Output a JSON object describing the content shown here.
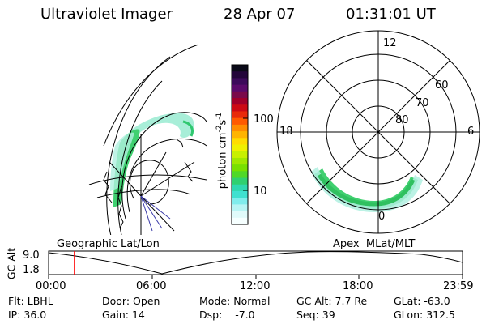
{
  "header": {
    "title": "Ultraviolet Imager",
    "date": "28 Apr 07",
    "time": "01:31:01 UT"
  },
  "colorbar": {
    "label": "photon cm-2s-1",
    "label_base": "photon cm",
    "label_sup1": "-2",
    "label_mid": "s",
    "label_sup2": "-1",
    "ticks": [
      "100",
      "10"
    ],
    "colors": [
      "#0a0a18",
      "#23053a",
      "#3c0a5a",
      "#5a0a6a",
      "#7a0a4a",
      "#a0002a",
      "#cc0a14",
      "#e82a0a",
      "#ff5a00",
      "#ff8c00",
      "#ffb400",
      "#ffdc00",
      "#f0f000",
      "#c8f000",
      "#a0e800",
      "#78e000",
      "#50d828",
      "#30d070",
      "#30d8b0",
      "#40e0d0",
      "#80ecec",
      "#b8f4f4",
      "#e0fafa",
      "#f6ffff"
    ]
  },
  "polar_plot": {
    "labels": [
      "12",
      "60",
      "70",
      "80",
      "18",
      "6",
      "0"
    ]
  },
  "projections": {
    "left": "Geographic Lat/Lon",
    "right": "Apex  MLat/MLT"
  },
  "altitude_chart": {
    "ylabel": "GC Alt",
    "yticks": [
      "9.0",
      "1.8"
    ],
    "xticks": [
      "00:00",
      "06:00",
      "12:00",
      "18:00",
      "23:59"
    ],
    "current_time_fraction": 0.062,
    "marker_color": "#ff0000"
  },
  "status": {
    "row1": [
      {
        "key": "Flt:",
        "value": "LBHL"
      },
      {
        "key": "Door:",
        "value": "Open"
      },
      {
        "key": "Mode:",
        "value": "Normal"
      },
      {
        "key": "GC Alt:",
        "value": "7.7 Re"
      },
      {
        "key": "GLat:",
        "value": "-63.0"
      }
    ],
    "row2": [
      {
        "key": "IP:",
        "value": "36.0"
      },
      {
        "key": "Gain:",
        "value": "14"
      },
      {
        "key": "Dsp:",
        "value": "-7.0"
      },
      {
        "key": "Seq:",
        "value": "39"
      },
      {
        "key": "GLon:",
        "value": "312.5"
      }
    ]
  }
}
